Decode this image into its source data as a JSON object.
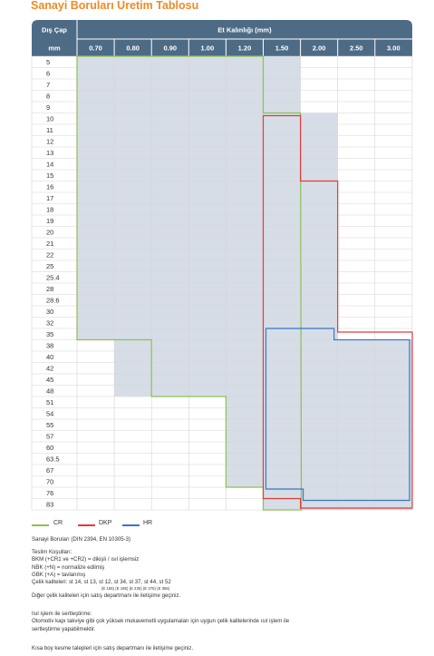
{
  "title": "Sanayi Boruları Üretim Tablosu",
  "colors": {
    "header": "#4e6b86",
    "fill": "#d6dde6",
    "grid": "#d5d5d5",
    "cr": "#8cc152",
    "dkp": "#e03b3b",
    "hr": "#3a76c4",
    "title": "#f08a24"
  },
  "table": {
    "col_header": "Dış Çap",
    "group_header": "Et Kalınlığı (mm)",
    "unit_header": "mm",
    "thicknesses": [
      "0.70",
      "0.80",
      "0.90",
      "1.00",
      "1.20",
      "1.50",
      "2.00",
      "2.50",
      "3.00"
    ],
    "diameters": [
      "5",
      "6",
      "7",
      "8",
      "9",
      "10",
      "11",
      "12",
      "13",
      "14",
      "15",
      "16",
      "17",
      "18",
      "19",
      "20",
      "21",
      "22",
      "25",
      "25.4",
      "28",
      "28.6",
      "30",
      "32",
      "35",
      "38",
      "40",
      "42",
      "45",
      "48",
      "51",
      "54",
      "55",
      "57",
      "60",
      "63.5",
      "67",
      "70",
      "76",
      "83"
    ],
    "availability": {
      "note": "row index ranges (0 = 5 mm) per thickness; shaded cells are produced",
      "ranges": [
        [
          0,
          24
        ],
        [
          0,
          29
        ],
        [
          0,
          29
        ],
        [
          0,
          29
        ],
        [
          0,
          37
        ],
        [
          0,
          39
        ],
        [
          5,
          39
        ],
        [
          25,
          39
        ],
        [
          25,
          39
        ]
      ]
    }
  },
  "legend": [
    {
      "key": "cr",
      "label": "CR"
    },
    {
      "key": "dkp",
      "label": "DKP"
    },
    {
      "key": "hr",
      "label": "HR"
    }
  ],
  "notes": {
    "standard": "Sanayi Boruları (DIN 2394, EN 10305-3)",
    "delivery_title": "Teslim Koşulları:",
    "delivery": [
      "BKM (+CR1 ve +CR2) = dikişli / ısıl işlemsiz",
      "NBK (+N) = normalize edilmiş",
      "GBK (+A) = tavlanmış",
      "Çelik kaliteleri: st 14, st 13, st 12, st 34, st 37, st 44, st 52"
    ],
    "quality_equivalents": "(E 155) (E 195) (E 235) (E 275) (E 355)",
    "other_quality": "Diğer çelik kaliteleri için satış departmanı ile iletişime geçiniz.",
    "heat_title": "Isıl işlem ile sertleştirme:",
    "heat_line1": "Otomotiv kapı takviye gibi çok yüksek mukavemetli uygulamaları için uygun çelik kalitelerinde ısıl işlem ile",
    "heat_line2": "sertleştirme yapabilmektir.",
    "cutting": "Kısa boy kesme talepleri için satış departmanı ile iletişime geçiniz."
  }
}
